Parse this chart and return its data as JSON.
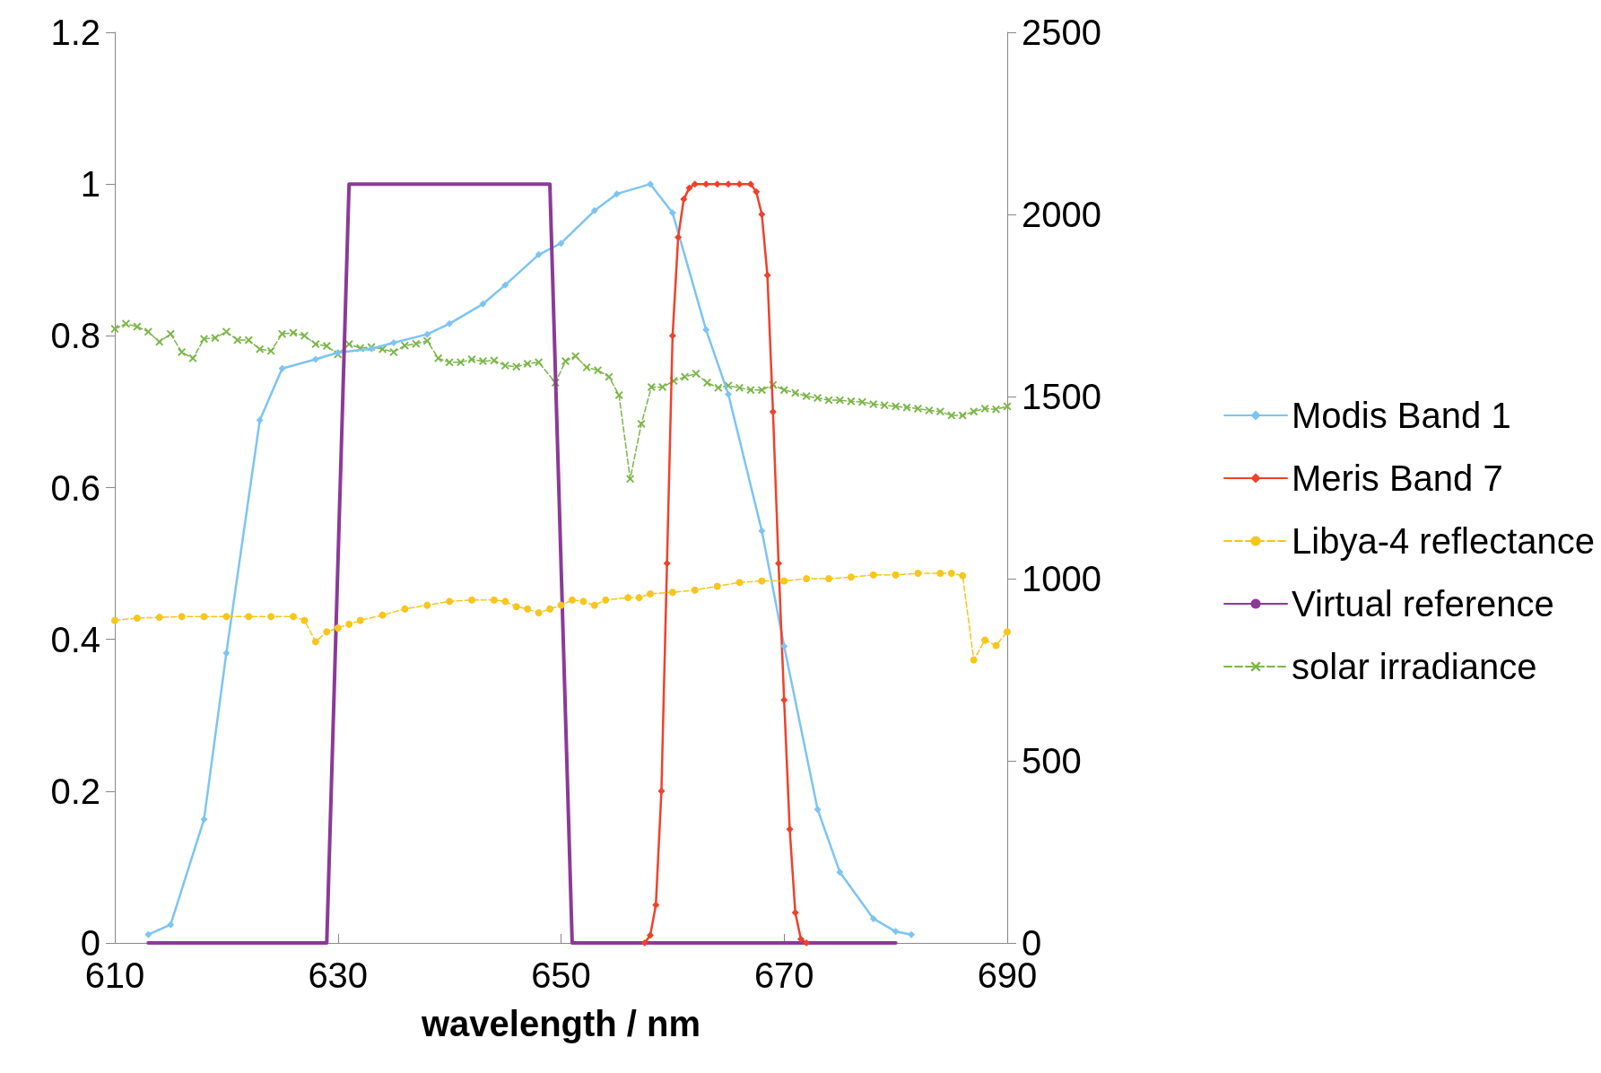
{
  "chart_data": {
    "type": "line",
    "xlabel": "wavelength / nm",
    "xlim": [
      610,
      690
    ],
    "xticks": [
      610,
      630,
      650,
      670,
      690
    ],
    "ylim": [
      0,
      1.2
    ],
    "yticks": [
      0,
      0.2,
      0.4,
      0.6,
      0.8,
      1,
      1.2
    ],
    "y2lim": [
      0,
      2500
    ],
    "y2ticks": [
      0,
      500,
      1000,
      1500,
      2000,
      2500
    ],
    "grid": false,
    "legend": "right",
    "series": [
      {
        "name": "Modis Band 1",
        "color": "#7cc4f4",
        "marker": "diamond",
        "line_style": "solid",
        "x": [
          613,
          615,
          618,
          620,
          623,
          625,
          628,
          630,
          633,
          635,
          638,
          640,
          643,
          645,
          648,
          650,
          653,
          655,
          658,
          660,
          663,
          665,
          668,
          670,
          673,
          675,
          678,
          680,
          681.4
        ],
        "values": [
          0.011,
          0.024,
          0.163,
          0.382,
          0.689,
          0.757,
          0.769,
          0.778,
          0.783,
          0.791,
          0.802,
          0.816,
          0.842,
          0.867,
          0.907,
          0.922,
          0.965,
          0.987,
          1.0,
          0.962,
          0.808,
          0.723,
          0.543,
          0.391,
          0.176,
          0.093,
          0.032,
          0.015,
          0.011
        ]
      },
      {
        "name": "Meris Band 7",
        "color": "#f0412a",
        "marker": "diamond",
        "line_style": "solid",
        "x": [
          657.5,
          658,
          658.5,
          659,
          659.5,
          660,
          660.5,
          661,
          661.5,
          662,
          663,
          664,
          665,
          666,
          667,
          667.5,
          668,
          668.5,
          669,
          669.5,
          670,
          670.5,
          671,
          671.5,
          672
        ],
        "values": [
          0,
          0.01,
          0.05,
          0.2,
          0.5,
          0.8,
          0.93,
          0.98,
          0.995,
          1,
          1,
          1,
          1,
          1,
          1,
          0.99,
          0.96,
          0.88,
          0.7,
          0.5,
          0.32,
          0.15,
          0.04,
          0.005,
          0
        ]
      },
      {
        "name": "Libya-4 reflectance",
        "color": "#f8c51c",
        "marker": "circle",
        "line_style": "dashed",
        "x": [
          610,
          612,
          614,
          616,
          618,
          620,
          622,
          624,
          626,
          627,
          628,
          629,
          630,
          631,
          632,
          634,
          636,
          638,
          640,
          642,
          644,
          645,
          646,
          647,
          648,
          649,
          650,
          651,
          652,
          653,
          654,
          656,
          657,
          658,
          660,
          662,
          664,
          666,
          668,
          670,
          672,
          674,
          676,
          678,
          680,
          682,
          684,
          685,
          686,
          687,
          688,
          689,
          690
        ],
        "values": [
          0.425,
          0.428,
          0.429,
          0.43,
          0.43,
          0.43,
          0.43,
          0.43,
          0.43,
          0.425,
          0.397,
          0.41,
          0.415,
          0.42,
          0.425,
          0.432,
          0.44,
          0.445,
          0.45,
          0.452,
          0.452,
          0.45,
          0.443,
          0.44,
          0.435,
          0.44,
          0.445,
          0.452,
          0.45,
          0.445,
          0.452,
          0.455,
          0.455,
          0.46,
          0.462,
          0.465,
          0.47,
          0.475,
          0.477,
          0.477,
          0.48,
          0.48,
          0.482,
          0.485,
          0.485,
          0.487,
          0.487,
          0.487,
          0.484,
          0.373,
          0.399,
          0.392,
          0.41
        ]
      },
      {
        "name": "Virtual reference",
        "color": "#8b3a98",
        "marker": "none",
        "line_style": "solid",
        "x": [
          613,
          629,
          631,
          649,
          651,
          680
        ],
        "values": [
          0,
          0,
          1,
          1,
          0,
          0
        ]
      },
      {
        "name": "solar irradiance",
        "color": "#7ab648",
        "marker": "cross",
        "line_style": "dashed",
        "axis": "y2",
        "x": [
          610,
          611,
          612,
          613,
          614,
          615,
          616,
          617,
          618,
          619,
          620,
          621,
          622,
          623,
          624,
          625,
          626,
          627,
          628,
          629,
          630,
          631,
          632,
          633,
          634,
          635,
          636,
          637,
          638,
          639,
          640,
          641,
          642,
          643,
          644,
          645,
          646,
          647,
          648,
          649.5,
          650.4,
          651.3,
          652.3,
          653.3,
          654.3,
          655.2,
          656.2,
          657.2,
          658.1,
          659.1,
          660.1,
          661.1,
          662.1,
          663.1,
          664.1,
          665,
          666,
          667,
          668,
          669,
          670,
          671,
          672,
          673,
          674,
          675,
          676,
          677,
          678,
          679,
          680,
          681,
          682,
          683,
          684,
          685,
          686,
          687,
          688,
          689,
          690
        ],
        "values": [
          1686,
          1700,
          1692,
          1678,
          1650,
          1672,
          1622,
          1605,
          1658,
          1661,
          1678,
          1655,
          1655,
          1630,
          1625,
          1672,
          1675,
          1667,
          1644,
          1639,
          1616,
          1644,
          1633,
          1636,
          1630,
          1622,
          1640,
          1645,
          1653,
          1605,
          1594,
          1594,
          1602,
          1597,
          1599,
          1585,
          1582,
          1590,
          1594,
          1538,
          1597,
          1611,
          1580,
          1572,
          1554,
          1504,
          1274,
          1425,
          1526,
          1526,
          1543,
          1554,
          1563,
          1538,
          1524,
          1530,
          1524,
          1518,
          1518,
          1532,
          1518,
          1510,
          1501,
          1496,
          1490,
          1490,
          1487,
          1485,
          1479,
          1476,
          1473,
          1470,
          1467,
          1462,
          1459,
          1448,
          1448,
          1459,
          1467,
          1465,
          1473
        ]
      }
    ]
  }
}
